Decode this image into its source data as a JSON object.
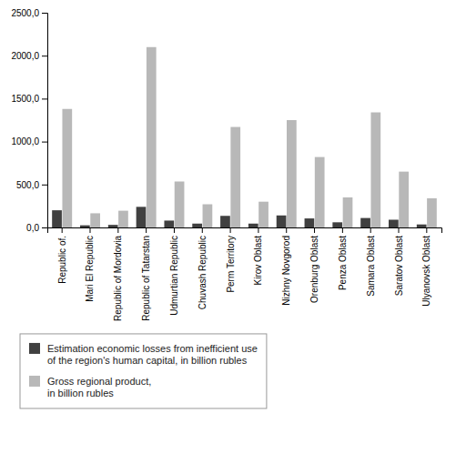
{
  "chart_data": {
    "type": "bar",
    "categories": [
      "Republic of.",
      "Mari El Republic",
      "Republic of Mordovia",
      "Republic of Tatarstan",
      "Udmurtian Republic",
      "Chuvash Republic",
      "Perm Territory",
      "Kirov Oblast",
      "Nizhny Novgorod",
      "Orenburg Oblast",
      "Penza Oblast",
      "Samara Oblast",
      "Saratov Oblast",
      "Ulyanovsk Oblast"
    ],
    "series": [
      {
        "name": "Estimation economic losses from inefficient use\nof the region's human capital, in billion rubles",
        "color": "#404040",
        "values": [
          200,
          25,
          30,
          240,
          80,
          45,
          135,
          45,
          140,
          105,
          60,
          110,
          90,
          35
        ]
      },
      {
        "name": "Gross regional product,\nin billion rubles",
        "color": "#b8b8b8",
        "values": [
          1380,
          165,
          195,
          2100,
          535,
          270,
          1170,
          300,
          1250,
          820,
          350,
          1340,
          650,
          340
        ]
      }
    ],
    "ylim": [
      0,
      2500
    ],
    "yticks": [
      {
        "value": 0,
        "label": "0,0"
      },
      {
        "value": 500,
        "label": "500,0"
      },
      {
        "value": 1000,
        "label": "1000,0"
      },
      {
        "value": 1500,
        "label": "1500,0"
      },
      {
        "value": 2000,
        "label": "2000,0"
      },
      {
        "value": 2500,
        "label": "2500,0"
      }
    ],
    "grid": false,
    "legend": "bottom"
  }
}
